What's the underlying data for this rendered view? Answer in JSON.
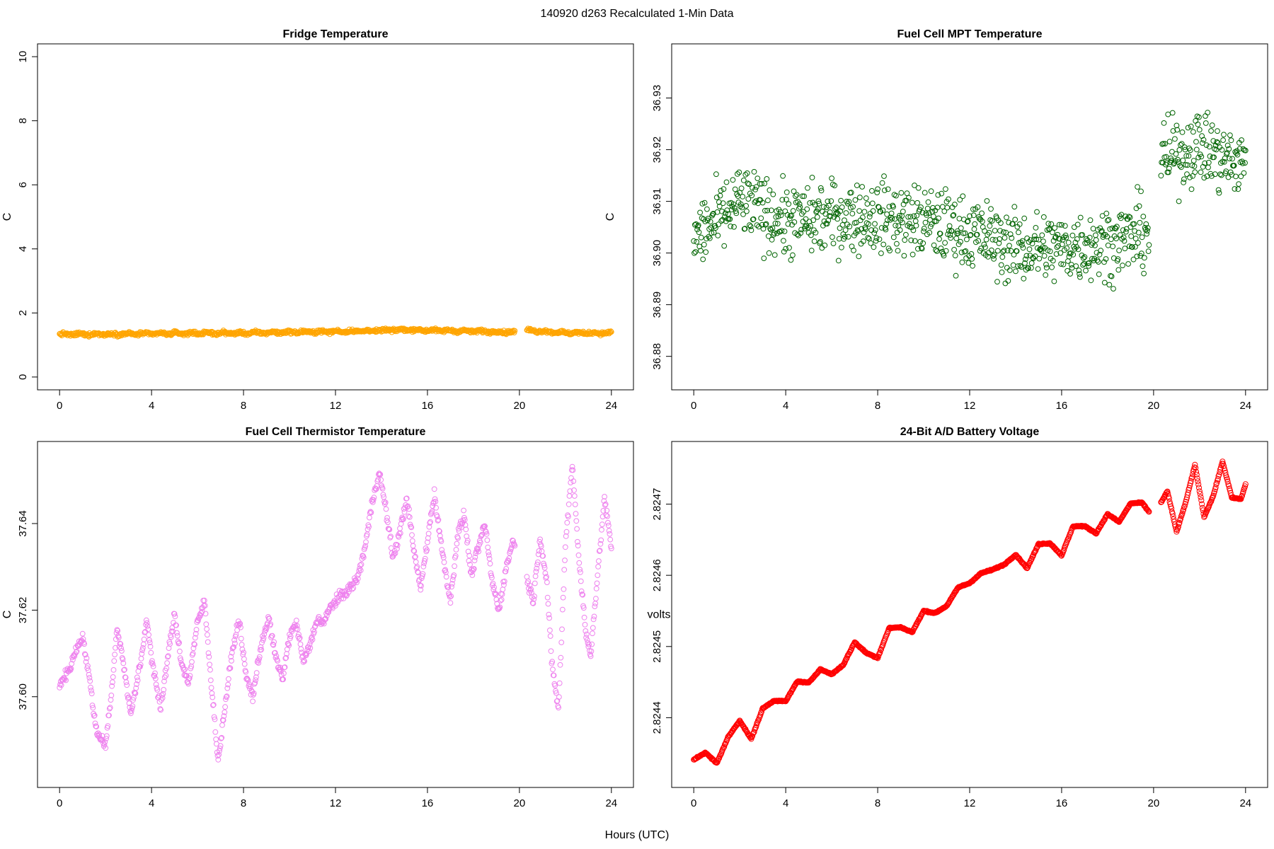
{
  "page": {
    "suptitle": "140920   d263   Recalculated 1-Min Data",
    "shared_xlabel": "Hours (UTC)"
  },
  "chart_data": [
    {
      "id": "fridge",
      "type": "scatter",
      "title": "Fridge Temperature",
      "xlabel": "",
      "ylabel": "C",
      "xlim": [
        0,
        24
      ],
      "ylim": [
        0,
        10
      ],
      "xticks": [
        0,
        4,
        8,
        12,
        16,
        20,
        24
      ],
      "xtick_labels": [
        "0",
        "4",
        "8",
        "12",
        "16",
        "20",
        "24"
      ],
      "yticks": [
        0,
        2,
        4,
        6,
        8,
        10
      ],
      "ytick_labels": [
        "0",
        "2",
        "4",
        "6",
        "8",
        "10"
      ],
      "color": "#ffa500",
      "data_gap": [
        19.8,
        20.3
      ],
      "series": [
        {
          "name": "Fridge Temperature",
          "x": [
            0,
            2,
            4,
            6,
            8,
            10,
            12,
            14,
            15,
            16,
            18,
            19.8,
            20.3,
            22,
            24
          ],
          "y": [
            1.33,
            1.34,
            1.35,
            1.37,
            1.37,
            1.4,
            1.42,
            1.45,
            1.48,
            1.46,
            1.43,
            1.4,
            1.46,
            1.38,
            1.37
          ]
        }
      ]
    },
    {
      "id": "mpt",
      "type": "scatter",
      "title": "Fuel Cell MPT Temperature",
      "xlabel": "",
      "ylabel": "C",
      "xlim": [
        0,
        24
      ],
      "ylim": [
        36.876,
        36.938
      ],
      "xticks": [
        0,
        4,
        8,
        12,
        16,
        20,
        24
      ],
      "xtick_labels": [
        "0",
        "4",
        "8",
        "12",
        "16",
        "20",
        "24"
      ],
      "yticks": [
        36.88,
        36.89,
        36.9,
        36.91,
        36.92,
        36.93
      ],
      "ytick_labels": [
        "36.88",
        "36.89",
        "36.90",
        "36.91",
        "36.92",
        "36.93"
      ],
      "color": "#006400",
      "data_gap": [
        19.8,
        20.3
      ],
      "series": [
        {
          "name": "Fuel Cell MPT Temperature",
          "x": [
            0,
            1,
            2,
            4,
            6,
            8,
            10,
            12,
            14,
            16,
            18,
            19.8,
            20.3,
            21,
            22,
            23,
            24
          ],
          "y": [
            36.903,
            36.906,
            36.91,
            36.906,
            36.907,
            36.907,
            36.906,
            36.904,
            36.901,
            36.901,
            36.902,
            36.904,
            36.918,
            36.919,
            36.921,
            36.918,
            36.917
          ]
        }
      ]
    },
    {
      "id": "thermistor",
      "type": "scatter",
      "title": "Fuel Cell Thermistor Temperature",
      "xlabel": "",
      "ylabel": "C",
      "xlim": [
        0,
        24
      ],
      "ylim": [
        37.582,
        37.656
      ],
      "xticks": [
        0,
        4,
        8,
        12,
        16,
        20,
        24
      ],
      "xtick_labels": [
        "0",
        "4",
        "8",
        "12",
        "16",
        "20",
        "24"
      ],
      "yticks": [
        37.6,
        37.62,
        37.64
      ],
      "ytick_labels": [
        "37.60",
        "37.62",
        "37.64"
      ],
      "color": "#ee82ee",
      "data_gap": [
        19.8,
        20.3
      ],
      "series": [
        {
          "name": "Fuel Cell Thermistor Temperature",
          "x": [
            0.0,
            0.4,
            0.8,
            1.0,
            1.3,
            1.6,
            2.0,
            2.3,
            2.5,
            2.8,
            3.1,
            3.5,
            3.8,
            4.0,
            4.4,
            4.7,
            5.0,
            5.3,
            5.6,
            6.0,
            6.3,
            6.6,
            6.9,
            7.2,
            7.5,
            7.8,
            8.1,
            8.4,
            8.8,
            9.1,
            9.4,
            9.7,
            10.0,
            10.3,
            10.6,
            10.9,
            11.2,
            11.5,
            11.8,
            12.0,
            12.4,
            12.8,
            13.0,
            13.3,
            13.6,
            13.9,
            14.2,
            14.5,
            14.8,
            15.1,
            15.4,
            15.7,
            16.0,
            16.3,
            16.6,
            17.0,
            17.3,
            17.6,
            17.9,
            18.2,
            18.5,
            18.8,
            19.1,
            19.4,
            19.7,
            20.3,
            20.6,
            20.9,
            21.2,
            21.4,
            21.7,
            22.0,
            22.3,
            22.6,
            22.9,
            23.1,
            23.4,
            23.7,
            24.0
          ],
          "y": [
            37.603,
            37.606,
            37.612,
            37.614,
            37.604,
            37.592,
            37.589,
            37.603,
            37.616,
            37.607,
            37.596,
            37.607,
            37.618,
            37.609,
            37.597,
            37.609,
            37.619,
            37.608,
            37.603,
            37.617,
            37.622,
            37.603,
            37.585,
            37.598,
            37.61,
            37.618,
            37.605,
            37.6,
            37.613,
            37.618,
            37.609,
            37.604,
            37.614,
            37.617,
            37.608,
            37.612,
            37.618,
            37.617,
            37.621,
            37.622,
            37.624,
            37.626,
            37.628,
            37.635,
            37.645,
            37.652,
            37.643,
            37.632,
            37.638,
            37.646,
            37.634,
            37.625,
            37.636,
            37.647,
            37.635,
            37.622,
            37.637,
            37.642,
            37.628,
            37.634,
            37.64,
            37.627,
            37.62,
            37.629,
            37.636,
            37.628,
            37.622,
            37.637,
            37.626,
            37.608,
            37.597,
            37.635,
            37.654,
            37.631,
            37.614,
            37.61,
            37.628,
            37.646,
            37.634
          ]
        }
      ]
    },
    {
      "id": "battery",
      "type": "scatter",
      "title": "24-Bit A/D Battery Voltage",
      "xlabel": "",
      "ylabel": "volts",
      "xlim": [
        0,
        24
      ],
      "ylim": [
        2.82432,
        2.82477
      ],
      "xticks": [
        0,
        4,
        8,
        12,
        16,
        20,
        24
      ],
      "xtick_labels": [
        "0",
        "4",
        "8",
        "12",
        "16",
        "20",
        "24"
      ],
      "yticks": [
        2.8244,
        2.8245,
        2.8246,
        2.8247
      ],
      "ytick_labels": [
        "2.8244",
        "2.8245",
        "2.8246",
        "2.8247"
      ],
      "color": "#ff0000",
      "data_gap": [
        19.8,
        20.3
      ],
      "series": [
        {
          "name": "24-Bit A/D Battery Voltage",
          "x": [
            0.0,
            0.5,
            1.0,
            1.5,
            2.0,
            2.5,
            3.0,
            3.5,
            4.0,
            4.5,
            5.0,
            5.5,
            6.0,
            6.5,
            7.0,
            7.5,
            8.0,
            8.5,
            9.0,
            9.5,
            10.0,
            10.5,
            11.0,
            11.5,
            12.0,
            12.5,
            13.0,
            13.5,
            14.0,
            14.5,
            15.0,
            15.5,
            16.0,
            16.5,
            17.0,
            17.5,
            18.0,
            18.5,
            19.0,
            19.5,
            19.8,
            20.3,
            20.6,
            21.0,
            21.4,
            21.8,
            22.2,
            22.6,
            23.0,
            23.4,
            23.8,
            24.0
          ],
          "y": [
            2.824341,
            2.824351,
            2.824336,
            2.824373,
            2.824396,
            2.82437,
            2.824413,
            2.824424,
            2.824423,
            2.824451,
            2.824449,
            2.824468,
            2.824461,
            2.824474,
            2.824506,
            2.824491,
            2.824484,
            2.824526,
            2.824527,
            2.82452,
            2.82455,
            2.824547,
            2.824557,
            2.824583,
            2.824589,
            2.824603,
            2.824608,
            2.824615,
            2.824629,
            2.82461,
            2.824644,
            2.824645,
            2.824628,
            2.824669,
            2.824669,
            2.824659,
            2.824686,
            2.824675,
            2.824701,
            2.824702,
            2.824689,
            2.824701,
            2.824718,
            2.824661,
            2.824703,
            2.824755,
            2.824682,
            2.824712,
            2.82476,
            2.824709,
            2.824707,
            2.824728
          ]
        }
      ]
    }
  ]
}
